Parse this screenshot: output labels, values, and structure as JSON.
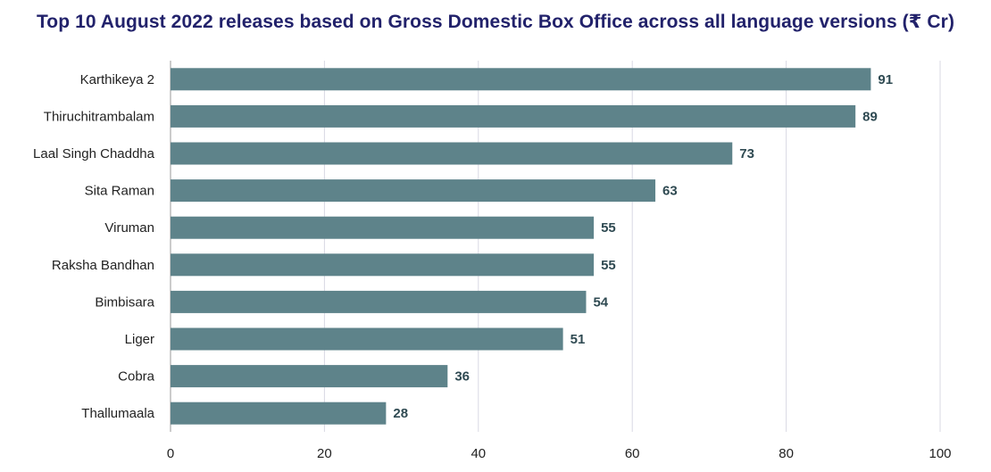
{
  "chart_data": {
    "type": "bar",
    "orientation": "horizontal",
    "title": "Top 10 August 2022 releases based on Gross Domestic Box Office across all language versions (₹ Cr)",
    "categories": [
      "Karthikeya 2",
      "Thiruchitrambalam",
      "Laal Singh Chaddha",
      "Sita Raman",
      "Viruman",
      "Raksha Bandhan",
      "Bimbisara",
      "Liger",
      "Cobra",
      "Thallumaala"
    ],
    "values": [
      91,
      89,
      73,
      63,
      55,
      55,
      54,
      51,
      36,
      28
    ],
    "xlim": [
      0,
      100
    ],
    "xticks": [
      0,
      20,
      40,
      60,
      80,
      100
    ],
    "grid": "vertical",
    "bar_color": "#5e838a",
    "label_color": "#2f4a52",
    "title_color": "#22226b"
  }
}
